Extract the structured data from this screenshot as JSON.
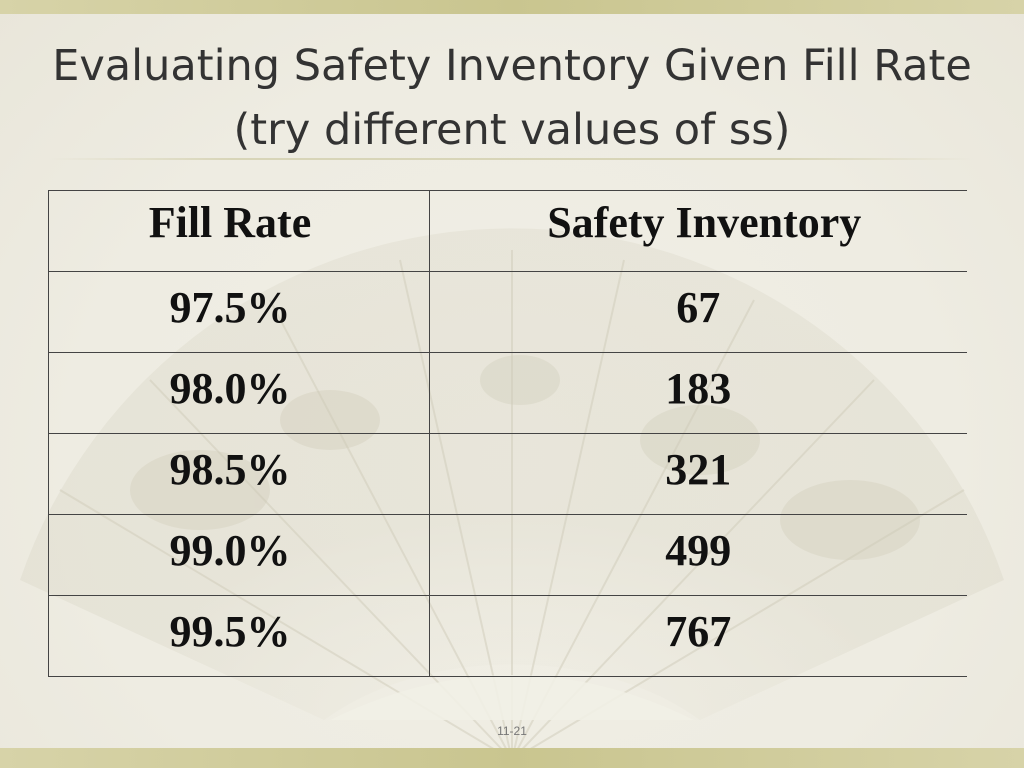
{
  "slide": {
    "title": "Evaluating Safety Inventory Given Fill Rate (try different values of ss)",
    "slide_number": "11-21"
  },
  "table": {
    "headers": [
      "Fill Rate",
      "Safety Inventory"
    ],
    "rows": [
      [
        "97.5%",
        "67"
      ],
      [
        "98.0%",
        "183"
      ],
      [
        "98.5%",
        "321"
      ],
      [
        "99.0%",
        "499"
      ],
      [
        "99.5%",
        "767"
      ]
    ]
  },
  "colors": {
    "background": "#f1efe6",
    "accent_band": "#c9c58f",
    "title_text": "#333333",
    "table_text": "#111111"
  }
}
